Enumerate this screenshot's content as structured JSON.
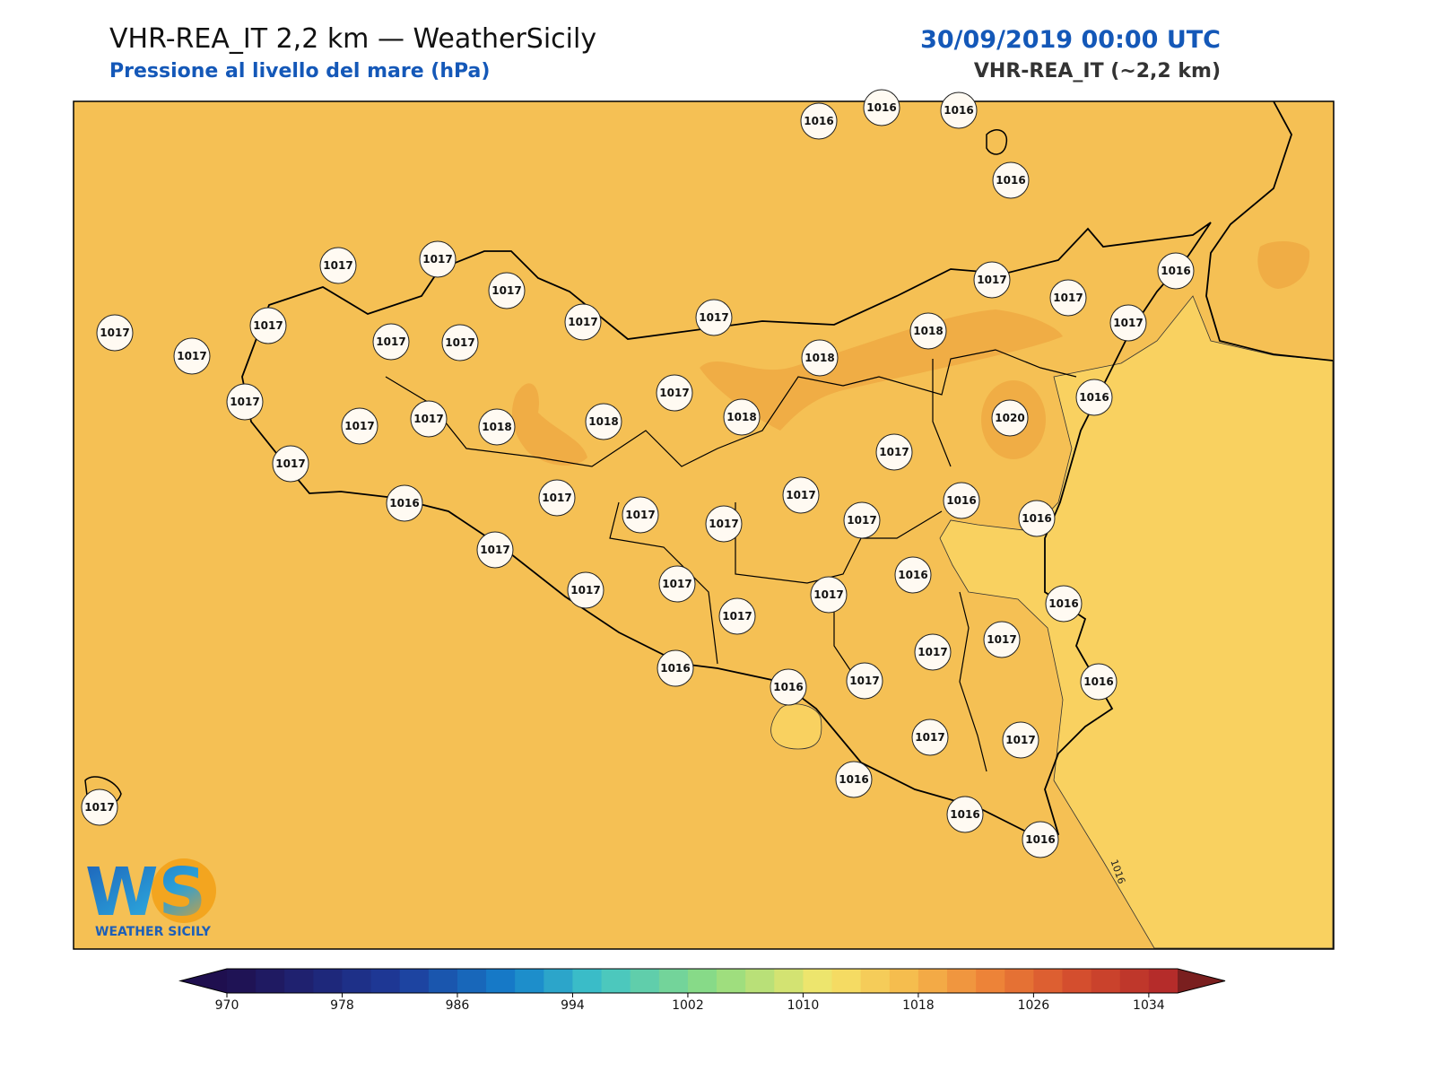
{
  "header": {
    "title": "VHR-REA_IT 2,2 km — WeatherSicily",
    "subtitle": "Pressione al livello del mare (hPa)",
    "time": "30/09/2019 00:00 UTC",
    "model": "VHR-REA_IT (~2,2 km)"
  },
  "map": {
    "contour_label": "1016",
    "stations": [
      1016,
      1016,
      1016,
      1016,
      1017,
      1017,
      1017,
      1016,
      1017,
      1017,
      1017,
      1017,
      1017,
      1017,
      1018,
      1017,
      1017,
      1017,
      1017,
      1018,
      1017,
      1016,
      1017,
      1017,
      1017,
      1018,
      1018,
      1018,
      1020,
      1017,
      1017,
      1016,
      1017,
      1017,
      1016,
      1017,
      1017,
      1017,
      1016,
      1017,
      1016,
      1017,
      1017,
      1017,
      1016,
      1017,
      1017,
      1017,
      1016,
      1016,
      1017,
      1016,
      1017,
      1017,
      1016,
      1016,
      1016,
      1017
    ]
  },
  "logo": {
    "mark": "WS",
    "text": "WEATHER SICILY"
  },
  "colorbar": {
    "lim": [
      970,
      1036
    ],
    "ticks": [
      970,
      978,
      986,
      994,
      1002,
      1010,
      1018,
      1026,
      1034
    ]
  }
}
